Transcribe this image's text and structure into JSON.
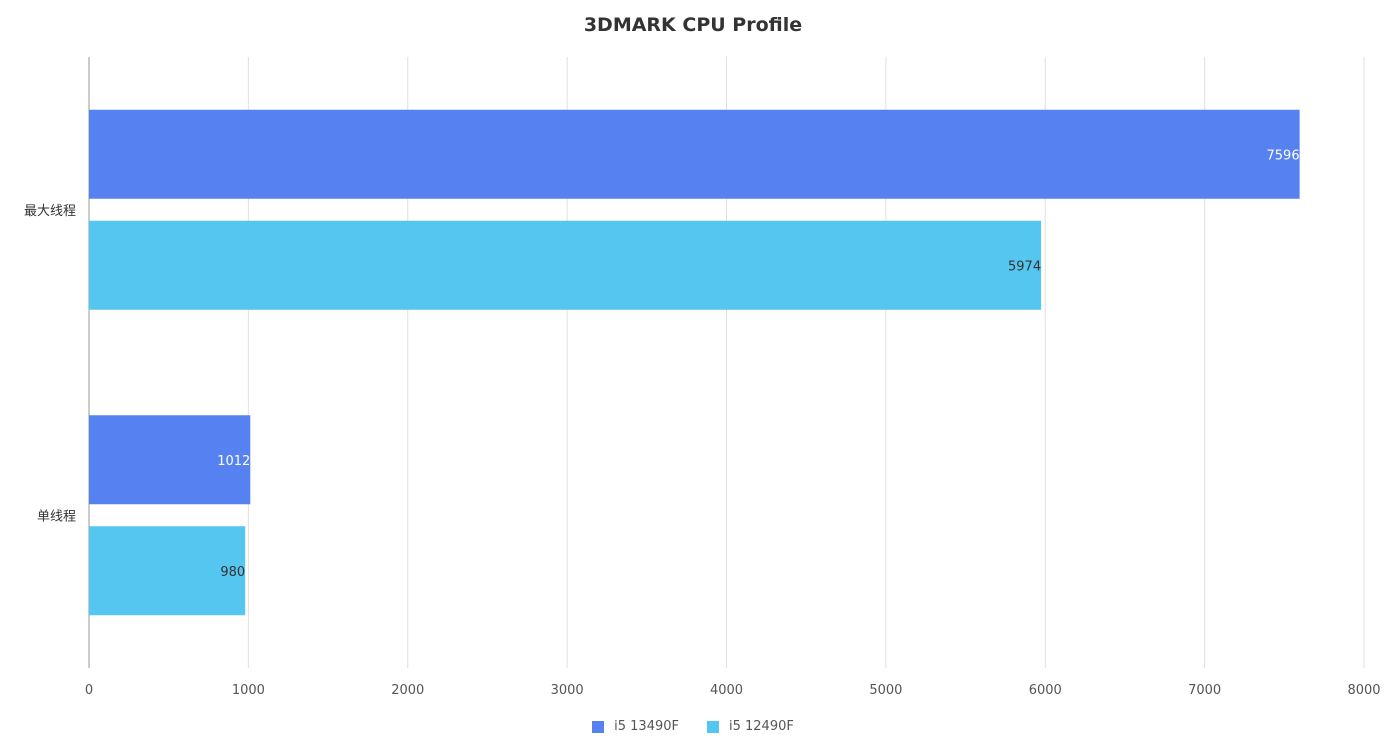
{
  "chart_data": {
    "type": "bar",
    "orientation": "horizontal",
    "title": "3DMARK CPU Profile",
    "categories": [
      "最大线程",
      "单线程"
    ],
    "series": [
      {
        "name": "i5 13490F",
        "values": [
          7596,
          1012
        ],
        "color": "#5582F0",
        "label_color": "#ffffff"
      },
      {
        "name": "i5 12490F",
        "values": [
          5974,
          980
        ],
        "color": "#55C6F0",
        "label_color": "#333333"
      }
    ],
    "xlim": [
      0,
      8000
    ],
    "xticks": [
      "0",
      "1000",
      "2000",
      "3000",
      "4000",
      "5000",
      "6000",
      "7000",
      "8000"
    ],
    "grid": true,
    "legend": "bottom"
  }
}
